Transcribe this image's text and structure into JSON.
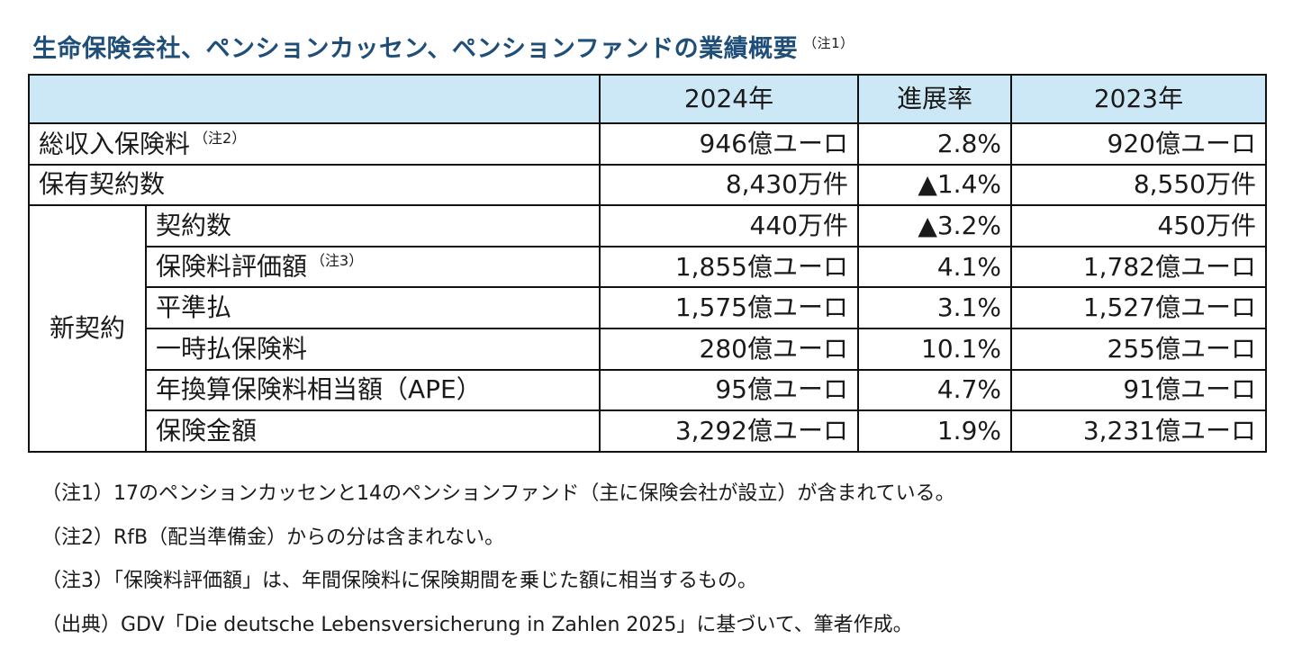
{
  "title": {
    "text": "生命保険会社、ペンションカッセン、ペンションファンドの業績概要",
    "note_mark": "（注1）"
  },
  "table": {
    "headers": [
      "",
      "2024年",
      "進展率",
      "2023年"
    ],
    "rows": {
      "total_premium": {
        "label": "総収入保険料",
        "note_mark": "（注2）",
        "y2024": "946億ユーロ",
        "rate": "2.8%",
        "y2023": "920億ユーロ"
      },
      "contracts_held": {
        "label": "保有契約数",
        "y2024": "8,430万件",
        "rate": "▲1.4%",
        "y2023": "8,550万件"
      },
      "new_contracts": {
        "group_label": "新契約",
        "count": {
          "label": "契約数",
          "y2024": "440万件",
          "rate": "▲3.2%",
          "y2023": "450万件"
        },
        "premium_valuation": {
          "label": "保険料評価額",
          "note_mark": "（注3）",
          "y2024": "1,855億ユーロ",
          "rate": "4.1%",
          "y2023": "1,782億ユーロ"
        },
        "level_premium": {
          "label": "平準払",
          "y2024": "1,575億ユーロ",
          "rate": "3.1%",
          "y2023": "1,527億ユーロ"
        },
        "single_premium": {
          "label": "一時払保険料",
          "y2024": "280億ユーロ",
          "rate": "10.1%",
          "y2023": "255億ユーロ"
        },
        "ape": {
          "label": "年換算保険料相当額（APE）",
          "y2024": "95億ユーロ",
          "rate": "4.7%",
          "y2023": "91億ユーロ"
        },
        "sum_insured": {
          "label": "保険金額",
          "y2024": "3,292億ユーロ",
          "rate": "1.9%",
          "y2023": "3,231億ユーロ"
        }
      }
    }
  },
  "notes": [
    "（注1）17のペンションカッセンと14のペンションファンド（主に保険会社が設立）が含まれている。",
    "（注2）RfB（配当準備金）からの分は含まれない。",
    "（注3）「保険料評価額」は、年間保険料に保険期間を乗じた額に相当するもの。",
    "（出典）GDV「Die deutsche Lebensversicherung in Zahlen 2025」に基づいて、筆者作成。"
  ]
}
